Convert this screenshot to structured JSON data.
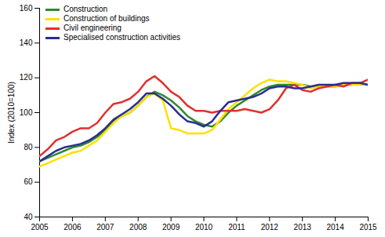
{
  "chart_data": {
    "type": "line",
    "y_label": "Index (2010=100)",
    "x": [
      2005,
      2005.25,
      2005.5,
      2005.75,
      2006,
      2006.25,
      2006.5,
      2006.75,
      2007,
      2007.25,
      2007.5,
      2007.75,
      2008,
      2008.25,
      2008.5,
      2008.75,
      2009,
      2009.25,
      2009.5,
      2009.75,
      2010,
      2010.25,
      2010.5,
      2010.75,
      2011,
      2011.25,
      2011.5,
      2011.75,
      2012,
      2012.25,
      2012.5,
      2012.75,
      2013,
      2013.25,
      2013.5,
      2013.75,
      2014,
      2014.25,
      2014.5,
      2014.75,
      2015
    ],
    "series": [
      {
        "name": "Construction",
        "color": "#2e8b2e",
        "values": [
          72,
          74,
          76,
          78,
          80,
          81,
          83,
          86,
          90,
          95,
          98,
          100,
          104,
          109,
          112,
          110,
          107,
          103,
          98,
          95,
          93,
          92,
          95,
          100,
          104,
          107,
          110,
          113,
          115,
          116,
          116,
          116,
          116,
          115,
          115,
          115,
          115,
          116,
          116,
          117,
          116
        ]
      },
      {
        "name": "Construction of buildings",
        "color": "#ffe000",
        "values": [
          69,
          71,
          73,
          75,
          77,
          78,
          81,
          84,
          89,
          94,
          98,
          100,
          104,
          109,
          111,
          107,
          91,
          90,
          88,
          88,
          88,
          90,
          96,
          102,
          106,
          110,
          114,
          117,
          119,
          118,
          118,
          117,
          116,
          114,
          115,
          115,
          115,
          116,
          116,
          116,
          116
        ]
      },
      {
        "name": "Civil engineering",
        "color": "#e0302e",
        "values": [
          75,
          79,
          84,
          86,
          89,
          91,
          91,
          94,
          100,
          105,
          106,
          108,
          112,
          118,
          121,
          117,
          112,
          109,
          104,
          101,
          101,
          100,
          101,
          101,
          101,
          102,
          101,
          100,
          102,
          107,
          114,
          116,
          113,
          112,
          114,
          115,
          116,
          115,
          117,
          117,
          119
        ]
      },
      {
        "name": "Specialised construction activities",
        "color": "#2b2d8f",
        "values": [
          72,
          75,
          78,
          80,
          81,
          82,
          84,
          87,
          91,
          96,
          99,
          102,
          106,
          111,
          111,
          108,
          104,
          99,
          95,
          94,
          92,
          95,
          101,
          106,
          107,
          108,
          109,
          111,
          114,
          115,
          115,
          114,
          114,
          115,
          116,
          116,
          116,
          117,
          117,
          117,
          116
        ]
      }
    ],
    "xlim": [
      2005,
      2015
    ],
    "xticks": [
      2005,
      2006,
      2007,
      2008,
      2009,
      2010,
      2011,
      2012,
      2013,
      2014,
      2015
    ],
    "ylim": [
      40,
      160
    ],
    "yticks": [
      40,
      60,
      80,
      100,
      120,
      140,
      160
    ],
    "grid": false,
    "legend": "top-left"
  }
}
